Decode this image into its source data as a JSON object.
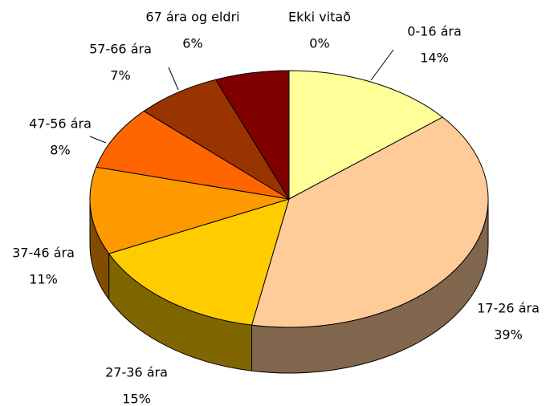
{
  "chart_data": {
    "type": "pie3d",
    "categories": [
      "0-16 ára",
      "17-26 ára",
      "27-36 ára",
      "37-46 ára",
      "47-56 ára",
      "57-66 ára",
      "67 ára og eldri",
      "Ekki vitað"
    ],
    "values": [
      14,
      39,
      15,
      11,
      8,
      7,
      6,
      0
    ],
    "value_labels": [
      "14%",
      "39%",
      "15%",
      "11%",
      "8%",
      "7%",
      "6%",
      "0%"
    ],
    "colors": [
      "#ffff99",
      "#ffcc99",
      "#ffcc00",
      "#ff9900",
      "#ff6600",
      "#993300",
      "#800000",
      "#cc0000"
    ]
  }
}
